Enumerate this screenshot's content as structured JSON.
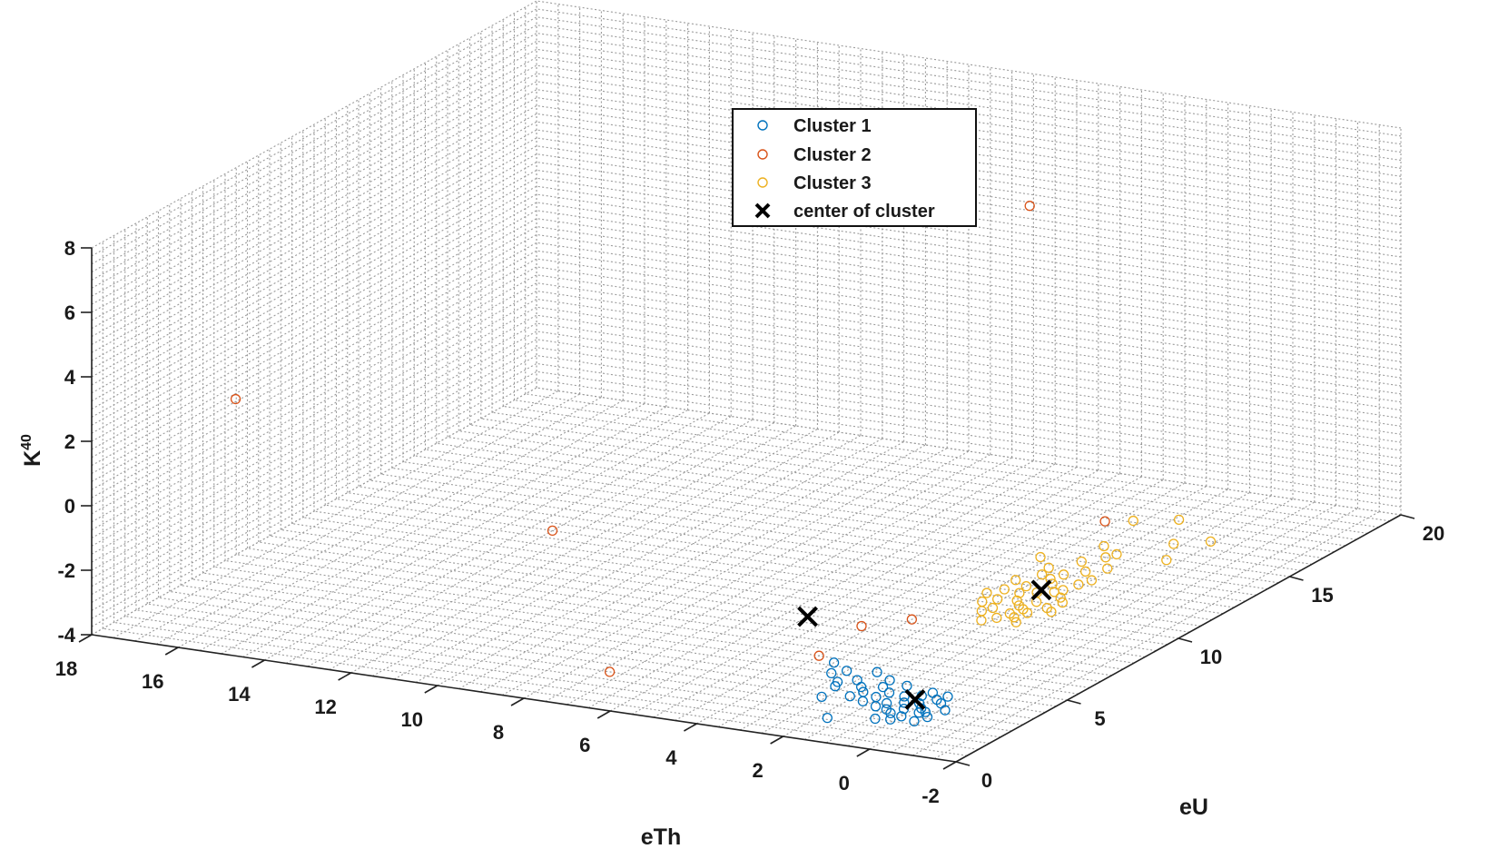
{
  "chart_data": {
    "type": "scatter",
    "dimensions": 3,
    "xlabel": "eTh",
    "ylabel": "eU",
    "zlabel_base": "K",
    "zlabel_sup": "40",
    "xlim": [
      -2,
      18
    ],
    "ylim": [
      0,
      20
    ],
    "zlim": [
      -4,
      8
    ],
    "x_ticks": [
      -2,
      0,
      2,
      4,
      6,
      8,
      10,
      12,
      14,
      16,
      18
    ],
    "y_ticks": [
      0,
      5,
      10,
      15,
      20
    ],
    "z_ticks": [
      -4,
      -2,
      0,
      2,
      4,
      6,
      8
    ],
    "grid": true,
    "legend_position": "top-center",
    "legend": [
      {
        "label": "Cluster 1",
        "marker": "circle",
        "color": "#0072bd"
      },
      {
        "label": "Cluster 2",
        "marker": "circle",
        "color": "#d95319"
      },
      {
        "label": "Cluster 3",
        "marker": "circle",
        "color": "#edb120"
      },
      {
        "label": "center of  cluster",
        "marker": "x",
        "color": "#000000"
      }
    ],
    "clusters": [
      {
        "name": "Cluster 1",
        "color": "#0072bd",
        "points": [
          [
            0.3,
            2.8,
            -4
          ],
          [
            0.6,
            3.4,
            -4
          ],
          [
            0.1,
            2.2,
            -4
          ],
          [
            0.8,
            3.9,
            -4
          ],
          [
            0.4,
            3.1,
            -4
          ],
          [
            0.0,
            2.6,
            -4
          ],
          [
            0.7,
            2.9,
            -4
          ],
          [
            0.2,
            3.6,
            -4
          ],
          [
            0.9,
            3.3,
            -4
          ],
          [
            0.5,
            2.4,
            -4
          ],
          [
            1.1,
            3.7,
            -4
          ],
          [
            0.3,
            4.1,
            -4
          ],
          [
            0.6,
            2.1,
            -4
          ],
          [
            1.0,
            2.7,
            -4
          ],
          [
            0.4,
            3.8,
            -4
          ],
          [
            -0.1,
            3.2,
            -4
          ],
          [
            0.8,
            2.5,
            -4
          ],
          [
            1.2,
            3.1,
            -4
          ],
          [
            0.2,
            2.9,
            -4
          ],
          [
            0.7,
            4.2,
            -4
          ],
          [
            1.5,
            3.8,
            -4
          ],
          [
            1.8,
            4.1,
            -4
          ],
          [
            1.6,
            3.4,
            -4
          ],
          [
            2.0,
            3.6,
            -4
          ],
          [
            1.4,
            4.4,
            -4
          ],
          [
            2.2,
            3.9,
            -4
          ],
          [
            1.7,
            3.0,
            -4
          ],
          [
            2.5,
            4.3,
            -4
          ],
          [
            1.9,
            4.6,
            -4
          ],
          [
            2.7,
            3.7,
            -4
          ],
          [
            3.0,
            4.8,
            -4
          ],
          [
            2.4,
            5.0,
            -4
          ],
          [
            3.2,
            4.5,
            -4
          ],
          [
            2.8,
            4.0,
            -4
          ],
          [
            3.5,
            5.2,
            -4
          ],
          [
            2.1,
            3.2,
            -4
          ],
          [
            1.3,
            2.8,
            -4
          ],
          [
            2.6,
            2.9,
            -4
          ],
          [
            1.8,
            1.6,
            -4
          ],
          [
            0.9,
            2.0,
            -4
          ]
        ]
      },
      {
        "name": "Cluster 2",
        "color": "#d95319",
        "points": [
          [
            17.5,
            5.5,
            1.3
          ],
          [
            13.0,
            11.0,
            -4
          ],
          [
            3.5,
            14.0,
            6.8
          ],
          [
            7.3,
            2.5,
            -4
          ],
          [
            4.0,
            5.5,
            -4
          ],
          [
            4.2,
            7.8,
            -4
          ],
          [
            3.5,
            8.7,
            -4
          ],
          [
            3.2,
            16.8,
            -4
          ]
        ]
      },
      {
        "name": "Cluster 3",
        "color": "#edb120",
        "points": [
          [
            1.6,
            10.2,
            -4
          ],
          [
            1.8,
            11.0,
            -4
          ],
          [
            2.0,
            10.6,
            -4
          ],
          [
            1.5,
            11.5,
            -4
          ],
          [
            2.2,
            10.9,
            -4
          ],
          [
            1.7,
            12.0,
            -4
          ],
          [
            2.4,
            11.4,
            -4
          ],
          [
            1.9,
            10.0,
            -4
          ],
          [
            2.1,
            12.3,
            -4
          ],
          [
            1.4,
            10.7,
            -4
          ],
          [
            2.6,
            10.8,
            -4
          ],
          [
            1.8,
            11.8,
            -4
          ],
          [
            2.3,
            12.6,
            -4
          ],
          [
            1.6,
            12.5,
            -4
          ],
          [
            2.0,
            9.6,
            -4
          ],
          [
            2.5,
            11.9,
            -4
          ],
          [
            1.3,
            11.2,
            -4
          ],
          [
            2.8,
            11.5,
            -4
          ],
          [
            2.2,
            13.0,
            -4
          ],
          [
            1.9,
            13.4,
            -4
          ],
          [
            2.6,
            12.8,
            -4
          ],
          [
            1.7,
            9.8,
            -4
          ],
          [
            2.4,
            10.2,
            -4
          ],
          [
            1.5,
            12.9,
            -4
          ],
          [
            2.9,
            12.2,
            -4
          ],
          [
            2.1,
            11.6,
            -4
          ],
          [
            1.8,
            10.4,
            -4
          ],
          [
            2.7,
            13.3,
            -4
          ],
          [
            2.3,
            14.0,
            -4
          ],
          [
            1.6,
            13.8,
            -4
          ],
          [
            2.0,
            14.5,
            -4
          ],
          [
            2.5,
            9.9,
            -4
          ],
          [
            1.2,
            10.5,
            -4
          ],
          [
            3.0,
            11.1,
            -4
          ],
          [
            2.2,
            9.3,
            -4
          ],
          [
            1.9,
            14.8,
            -4
          ],
          [
            2.4,
            15.2,
            -4
          ],
          [
            3.2,
            13.9,
            -4
          ],
          [
            1.5,
            9.5,
            -4
          ],
          [
            2.8,
            10.5,
            -4
          ],
          [
            0.8,
            14.9,
            -4
          ],
          [
            1.9,
            17.6,
            -4
          ],
          [
            0.6,
            16.5,
            -4
          ],
          [
            2.7,
            17.1,
            -4
          ],
          [
            1.2,
            16.0,
            -4
          ]
        ]
      }
    ],
    "centers": [
      {
        "name": "center of  cluster",
        "point": [
          0.8,
          3.6,
          -4
        ]
      },
      {
        "name": "center of  cluster",
        "point": [
          2.1,
          11.8,
          -4
        ]
      },
      {
        "name": "center of  cluster",
        "point": [
          5.5,
          7.9,
          -4
        ]
      }
    ]
  }
}
